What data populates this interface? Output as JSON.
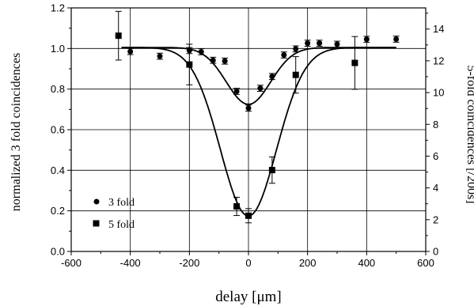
{
  "chart_data": {
    "type": "scatter",
    "title": "",
    "xlabel": "delay [μm]",
    "ylabel_left": "normalized 3 fold coincidences",
    "ylabel_right": "5-fold coincidences [/200s]",
    "xlim": [
      -600,
      600
    ],
    "ylim_left": [
      0.0,
      1.2
    ],
    "ylim_right": [
      0,
      15.33
    ],
    "x_ticks": [
      "-600",
      "-400",
      "-200",
      "0",
      "200",
      "400",
      "600"
    ],
    "y_ticks_left": [
      "0.0",
      "0.2",
      "0.4",
      "0.6",
      "0.8",
      "1.0",
      "1.2"
    ],
    "y_ticks_right": [
      "0",
      "2",
      "4",
      "6",
      "8",
      "10",
      "12",
      "14"
    ],
    "grid": true,
    "legend_position": "bottom-left",
    "series": [
      {
        "name": "3 fold",
        "marker": "circle",
        "axis": "left",
        "x": [
          -400,
          -300,
          -200,
          -160,
          -120,
          -80,
          -40,
          0,
          40,
          80,
          120,
          160,
          200,
          240,
          300,
          400,
          500
        ],
        "y": [
          0.985,
          0.962,
          0.99,
          0.984,
          0.942,
          0.938,
          0.789,
          0.706,
          0.804,
          0.862,
          0.968,
          0.998,
          1.026,
          1.026,
          1.021,
          1.045,
          1.046
        ],
        "err": [
          0.015,
          0.015,
          0.015,
          0.015,
          0.015,
          0.015,
          0.015,
          0.015,
          0.015,
          0.015,
          0.015,
          0.015,
          0.015,
          0.015,
          0.015,
          0.015,
          0.015
        ],
        "fit": {
          "baseline": 1.005,
          "depth": 0.28,
          "center": 0,
          "sigma": 75
        }
      },
      {
        "name": "5 fold",
        "marker": "square",
        "axis": "left",
        "x": [
          -440,
          -200,
          -40,
          0,
          80,
          160,
          360
        ],
        "y": [
          1.063,
          0.921,
          0.222,
          0.176,
          0.401,
          0.87,
          0.929
        ],
        "err": [
          0.12,
          0.1,
          0.045,
          0.035,
          0.065,
          0.09,
          0.13
        ],
        "fit": {
          "baseline": 1.005,
          "depth": 0.83,
          "center": 0,
          "sigma": 95
        }
      }
    ]
  }
}
